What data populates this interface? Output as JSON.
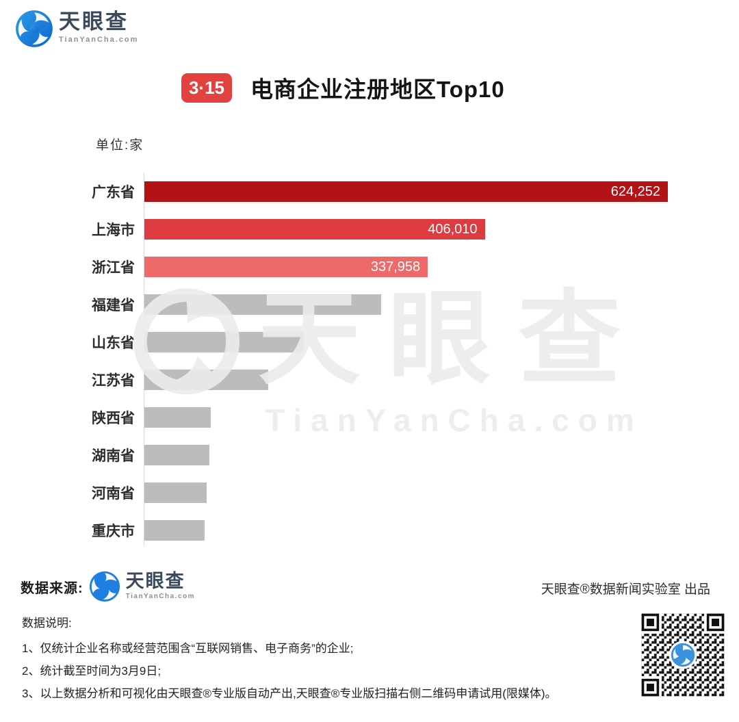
{
  "brand": {
    "logo_text": "天眼查",
    "logo_url_text": "TianYanCha.com"
  },
  "header": {
    "badge": "3·15",
    "title": "电商企业注册地区Top10",
    "unit_label": "单位:家"
  },
  "chart_data": {
    "type": "bar",
    "orientation": "horizontal",
    "title": "电商企业注册地区Top10",
    "unit": "家",
    "xlim": [
      0,
      624252
    ],
    "grid": false,
    "legend": false,
    "categories": [
      "广东省",
      "上海市",
      "浙江省",
      "福建省",
      "山东省",
      "江苏省",
      "陕西省",
      "湖南省",
      "河南省",
      "重庆市"
    ],
    "values": [
      624252,
      406010,
      337958,
      282000,
      190500,
      148000,
      79400,
      77500,
      74100,
      71700
    ],
    "value_labels": [
      "624,252",
      "406,010",
      "337,958",
      "",
      "",
      "",
      "",
      "",
      "",
      ""
    ],
    "bar_colors": [
      "#b31217",
      "#dc3c40",
      "#ee6a6a",
      "#bcbcbc",
      "#bcbcbc",
      "#bcbcbc",
      "#bcbcbc",
      "#bcbcbc",
      "#bcbcbc",
      "#bcbcbc"
    ]
  },
  "watermark": {
    "text": "天眼查",
    "subtext": "TianYanCha.com"
  },
  "footer": {
    "source_label": "数据来源:",
    "credit": "天眼查®数据新闻实验室 出品"
  },
  "notes": {
    "heading": "数据说明:",
    "items": [
      "1、仅统计企业名称或经营范围含“互联网销售、电子商务”的企业;",
      "2、统计截至时间为3月9日;",
      "3、以上数据分析和可视化由天眼查®专业版自动产出,天眼查®专业版扫描右侧二维码申请试用(限媒体)。"
    ]
  },
  "colors": {
    "accent_red": "#e2413d",
    "bar_dark_red": "#b31217",
    "bar_red": "#dc3c40",
    "bar_salmon": "#ee6a6a",
    "bar_gray": "#bcbcbc",
    "logo_blue": "#1f7fe0",
    "logo_slate": "#3a4a5c"
  }
}
